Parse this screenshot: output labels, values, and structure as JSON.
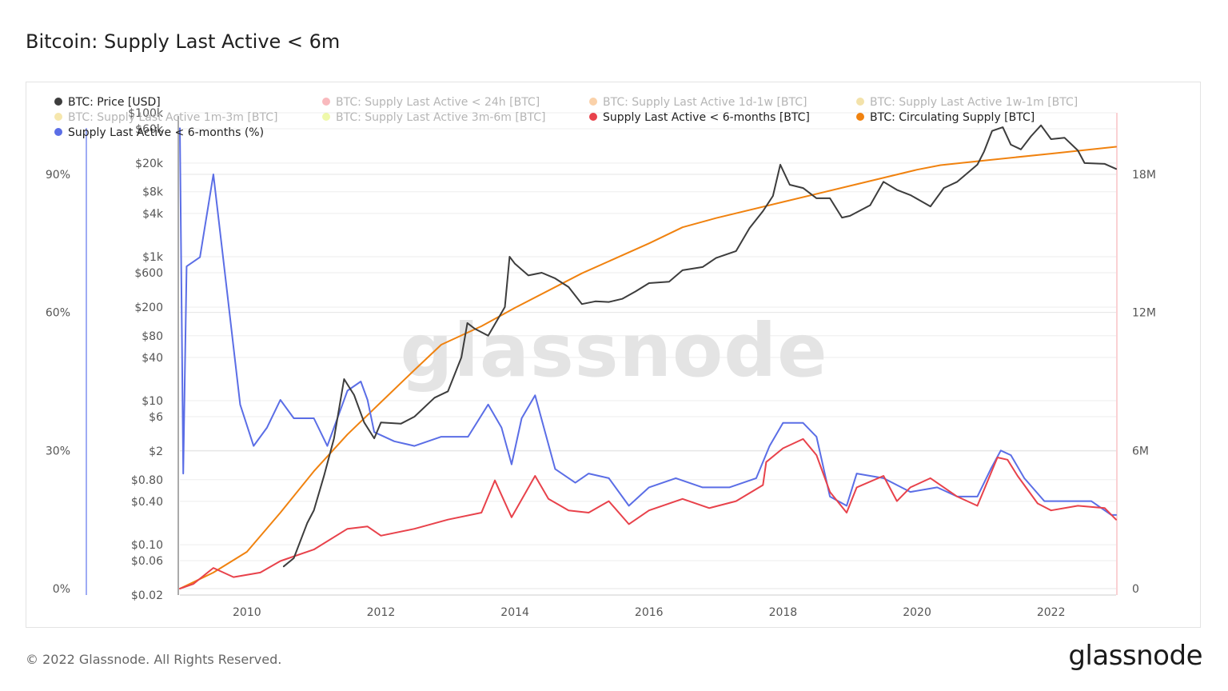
{
  "title": "Bitcoin: Supply Last Active < 6m",
  "footer": "© 2022 Glassnode. All Rights Reserved.",
  "brand": "glassnode",
  "watermark": "glassnode",
  "chart_data": {
    "type": "line",
    "title": "Bitcoin: Supply Last Active < 6m",
    "grid": true,
    "legend_placement": "top",
    "x_ticks": [
      "2010",
      "2012",
      "2014",
      "2016",
      "2018",
      "2020",
      "2022"
    ],
    "x_range": [
      2009.0,
      2022.97
    ],
    "legend": [
      {
        "name": "BTC: Price [USD]",
        "color": "#3d3d3d",
        "enabled": true
      },
      {
        "name": "BTC: Supply Last Active < 24h [BTC]",
        "color": "#f0505a",
        "enabled": false
      },
      {
        "name": "BTC: Supply Last Active 1d-1w [BTC]",
        "color": "#f28c28",
        "enabled": false
      },
      {
        "name": "BTC: Supply Last Active 1w-1m [BTC]",
        "color": "#e2b62b",
        "enabled": false
      },
      {
        "name": "BTC: Supply Last Active 1m-3m [BTC]",
        "color": "#e8c232",
        "enabled": false
      },
      {
        "name": "BTC: Supply Last Active 3m-6m [BTC]",
        "color": "#d7f02b",
        "enabled": false
      },
      {
        "name": "Supply Last Active < 6-months [BTC]",
        "color": "#e8424b",
        "enabled": true
      },
      {
        "name": "BTC: Circulating Supply [BTC]",
        "color": "#f0820f",
        "enabled": true
      },
      {
        "name": "Supply Last Active < 6-months (%)",
        "color": "#5b6ee6",
        "enabled": true
      }
    ],
    "axes": {
      "left_pct": {
        "ticks": [
          "0%",
          "30%",
          "60%",
          "90%"
        ],
        "values": [
          0,
          30,
          60,
          90
        ],
        "range": [
          0,
          90
        ]
      },
      "left_price": {
        "scale": "log",
        "range": [
          0.02,
          100000
        ],
        "ticks": [
          {
            "label": "$100k",
            "value": 100000
          },
          {
            "label": "$60k",
            "value": 60000
          },
          {
            "label": "$20k",
            "value": 20000
          },
          {
            "label": "$8k",
            "value": 8000
          },
          {
            "label": "$4k",
            "value": 4000
          },
          {
            "label": "$1k",
            "value": 1000
          },
          {
            "label": "$600",
            "value": 600
          },
          {
            "label": "$200",
            "value": 200
          },
          {
            "label": "$80",
            "value": 80
          },
          {
            "label": "$40",
            "value": 40
          },
          {
            "label": "$10",
            "value": 10
          },
          {
            "label": "$6",
            "value": 6
          },
          {
            "label": "$2",
            "value": 2
          },
          {
            "label": "$0.80",
            "value": 0.8
          },
          {
            "label": "$0.40",
            "value": 0.4
          },
          {
            "label": "$0.10",
            "value": 0.1
          },
          {
            "label": "$0.06",
            "value": 0.06
          },
          {
            "label": "$0.02",
            "value": 0.02
          }
        ]
      },
      "right_supply": {
        "ticks": [
          "0",
          "6M",
          "12M",
          "18M"
        ],
        "values": [
          0,
          6000000,
          12000000,
          18000000
        ],
        "range": [
          0,
          18000000
        ]
      }
    },
    "series": [
      {
        "name": "BTC: Price [USD]",
        "axis": "left_price",
        "color": "#3d3d3d",
        "points": [
          [
            2010.55,
            0.05
          ],
          [
            2010.7,
            0.065
          ],
          [
            2010.9,
            0.2
          ],
          [
            2011.0,
            0.3
          ],
          [
            2011.15,
            0.9
          ],
          [
            2011.3,
            3
          ],
          [
            2011.45,
            20
          ],
          [
            2011.6,
            12
          ],
          [
            2011.75,
            5
          ],
          [
            2011.9,
            3
          ],
          [
            2012.0,
            5
          ],
          [
            2012.3,
            4.8
          ],
          [
            2012.5,
            6
          ],
          [
            2012.8,
            11
          ],
          [
            2013.0,
            13.5
          ],
          [
            2013.2,
            40
          ],
          [
            2013.29,
            120
          ],
          [
            2013.4,
            100
          ],
          [
            2013.6,
            80
          ],
          [
            2013.85,
            200
          ],
          [
            2013.92,
            1000
          ],
          [
            2014.0,
            800
          ],
          [
            2014.2,
            550
          ],
          [
            2014.4,
            600
          ],
          [
            2014.6,
            500
          ],
          [
            2014.8,
            380
          ],
          [
            2015.0,
            220
          ],
          [
            2015.2,
            240
          ],
          [
            2015.4,
            235
          ],
          [
            2015.6,
            260
          ],
          [
            2015.8,
            330
          ],
          [
            2016.0,
            430
          ],
          [
            2016.3,
            450
          ],
          [
            2016.5,
            650
          ],
          [
            2016.8,
            720
          ],
          [
            2017.0,
            960
          ],
          [
            2017.3,
            1200
          ],
          [
            2017.5,
            2500
          ],
          [
            2017.7,
            4300
          ],
          [
            2017.85,
            7000
          ],
          [
            2017.96,
            19000
          ],
          [
            2018.1,
            10000
          ],
          [
            2018.3,
            9000
          ],
          [
            2018.5,
            6500
          ],
          [
            2018.7,
            6500
          ],
          [
            2018.88,
            3500
          ],
          [
            2019.0,
            3700
          ],
          [
            2019.3,
            5200
          ],
          [
            2019.5,
            11000
          ],
          [
            2019.7,
            8500
          ],
          [
            2019.9,
            7200
          ],
          [
            2020.2,
            5000
          ],
          [
            2020.4,
            9000
          ],
          [
            2020.6,
            11000
          ],
          [
            2020.9,
            19000
          ],
          [
            2021.0,
            29000
          ],
          [
            2021.12,
            56000
          ],
          [
            2021.28,
            63000
          ],
          [
            2021.4,
            36000
          ],
          [
            2021.55,
            31000
          ],
          [
            2021.7,
            47000
          ],
          [
            2021.85,
            67000
          ],
          [
            2022.0,
            43000
          ],
          [
            2022.2,
            45000
          ],
          [
            2022.4,
            30000
          ],
          [
            2022.5,
            20000
          ],
          [
            2022.8,
            19500
          ],
          [
            2022.97,
            16600
          ]
        ]
      },
      {
        "name": "Supply Last Active < 6-months [BTC]",
        "axis": "right_supply",
        "color": "#e8424b",
        "points": [
          [
            2009.0,
            0
          ],
          [
            2009.2,
            200000
          ],
          [
            2009.5,
            900000
          ],
          [
            2009.8,
            500000
          ],
          [
            2010.2,
            700000
          ],
          [
            2010.5,
            1200000
          ],
          [
            2011.0,
            1700000
          ],
          [
            2011.5,
            2600000
          ],
          [
            2011.8,
            2700000
          ],
          [
            2012.0,
            2300000
          ],
          [
            2012.5,
            2600000
          ],
          [
            2013.0,
            3000000
          ],
          [
            2013.5,
            3300000
          ],
          [
            2013.7,
            4700000
          ],
          [
            2013.95,
            3100000
          ],
          [
            2014.3,
            4900000
          ],
          [
            2014.5,
            3900000
          ],
          [
            2014.8,
            3400000
          ],
          [
            2015.1,
            3300000
          ],
          [
            2015.4,
            3800000
          ],
          [
            2015.7,
            2800000
          ],
          [
            2016.0,
            3400000
          ],
          [
            2016.5,
            3900000
          ],
          [
            2016.9,
            3500000
          ],
          [
            2017.3,
            3800000
          ],
          [
            2017.7,
            4500000
          ],
          [
            2017.75,
            5500000
          ],
          [
            2018.0,
            6100000
          ],
          [
            2018.3,
            6500000
          ],
          [
            2018.5,
            5800000
          ],
          [
            2018.7,
            4200000
          ],
          [
            2018.95,
            3300000
          ],
          [
            2019.1,
            4400000
          ],
          [
            2019.5,
            4900000
          ],
          [
            2019.7,
            3800000
          ],
          [
            2019.9,
            4400000
          ],
          [
            2020.2,
            4800000
          ],
          [
            2020.6,
            4000000
          ],
          [
            2020.9,
            3600000
          ],
          [
            2021.0,
            4300000
          ],
          [
            2021.2,
            5700000
          ],
          [
            2021.35,
            5600000
          ],
          [
            2021.5,
            4900000
          ],
          [
            2021.8,
            3700000
          ],
          [
            2022.0,
            3400000
          ],
          [
            2022.4,
            3600000
          ],
          [
            2022.8,
            3500000
          ],
          [
            2022.97,
            3000000
          ]
        ]
      },
      {
        "name": "BTC: Circulating Supply [BTC]",
        "axis": "right_supply",
        "color": "#f0820f",
        "points": [
          [
            2009.0,
            0
          ],
          [
            2009.5,
            700000
          ],
          [
            2010.0,
            1600000
          ],
          [
            2010.5,
            3300000
          ],
          [
            2011.0,
            5100000
          ],
          [
            2011.5,
            6700000
          ],
          [
            2012.0,
            8100000
          ],
          [
            2012.5,
            9500000
          ],
          [
            2012.9,
            10600000
          ],
          [
            2013.5,
            11400000
          ],
          [
            2014.0,
            12200000
          ],
          [
            2015.0,
            13700000
          ],
          [
            2016.0,
            15000000
          ],
          [
            2016.5,
            15700000
          ],
          [
            2017.0,
            16100000
          ],
          [
            2018.0,
            16800000
          ],
          [
            2019.0,
            17500000
          ],
          [
            2020.0,
            18200000
          ],
          [
            2020.35,
            18400000
          ],
          [
            2021.0,
            18600000
          ],
          [
            2022.0,
            18900000
          ],
          [
            2022.97,
            19200000
          ]
        ]
      },
      {
        "name": "Supply Last Active < 6-months (%)",
        "axis": "left_pct",
        "color": "#5b6ee6",
        "points": [
          [
            2009.0,
            100
          ],
          [
            2009.05,
            25
          ],
          [
            2009.1,
            70
          ],
          [
            2009.3,
            72
          ],
          [
            2009.5,
            90
          ],
          [
            2009.7,
            65
          ],
          [
            2009.9,
            40
          ],
          [
            2010.1,
            31
          ],
          [
            2010.3,
            35
          ],
          [
            2010.5,
            41
          ],
          [
            2010.7,
            37
          ],
          [
            2011.0,
            37
          ],
          [
            2011.2,
            31
          ],
          [
            2011.5,
            43
          ],
          [
            2011.7,
            45
          ],
          [
            2011.8,
            41
          ],
          [
            2011.9,
            34
          ],
          [
            2012.2,
            32
          ],
          [
            2012.5,
            31
          ],
          [
            2012.9,
            33
          ],
          [
            2013.3,
            33
          ],
          [
            2013.6,
            40
          ],
          [
            2013.8,
            35
          ],
          [
            2013.95,
            27
          ],
          [
            2014.1,
            37
          ],
          [
            2014.3,
            42
          ],
          [
            2014.45,
            34
          ],
          [
            2014.6,
            26
          ],
          [
            2014.9,
            23
          ],
          [
            2015.1,
            25
          ],
          [
            2015.4,
            24
          ],
          [
            2015.7,
            18
          ],
          [
            2016.0,
            22
          ],
          [
            2016.4,
            24
          ],
          [
            2016.8,
            22
          ],
          [
            2017.2,
            22
          ],
          [
            2017.6,
            24
          ],
          [
            2017.8,
            31
          ],
          [
            2018.0,
            36
          ],
          [
            2018.3,
            36
          ],
          [
            2018.5,
            33
          ],
          [
            2018.7,
            20
          ],
          [
            2018.95,
            18
          ],
          [
            2019.1,
            25
          ],
          [
            2019.5,
            24
          ],
          [
            2019.9,
            21
          ],
          [
            2020.3,
            22
          ],
          [
            2020.6,
            20
          ],
          [
            2020.9,
            20
          ],
          [
            2021.1,
            26
          ],
          [
            2021.25,
            30
          ],
          [
            2021.4,
            29
          ],
          [
            2021.6,
            24
          ],
          [
            2021.9,
            19
          ],
          [
            2022.2,
            19
          ],
          [
            2022.6,
            19
          ],
          [
            2022.9,
            16
          ],
          [
            2022.97,
            16
          ]
        ]
      }
    ]
  }
}
